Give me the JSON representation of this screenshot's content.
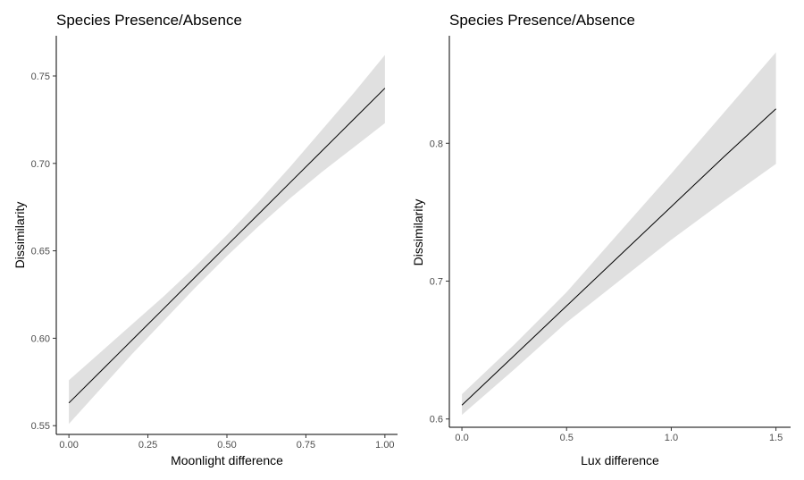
{
  "chart_data": [
    {
      "type": "line",
      "title": "Species Presence/Absence",
      "xlabel": "Moonlight difference",
      "ylabel": "Dissimilarity",
      "xlim": [
        -0.04,
        1.04
      ],
      "ylim": [
        0.545,
        0.773
      ],
      "x_ticks": [
        0.0,
        0.25,
        0.5,
        0.75,
        1.0
      ],
      "x_tick_labels": [
        "0.00",
        "0.25",
        "0.50",
        "0.75",
        "1.00"
      ],
      "y_ticks": [
        0.55,
        0.6,
        0.65,
        0.7,
        0.75
      ],
      "y_tick_labels": [
        "0.55",
        "0.60",
        "0.65",
        "0.70",
        "0.75"
      ],
      "grid": false,
      "legend": "none",
      "line_color": "#000000",
      "band_color": "#e0e0e0",
      "series": [
        {
          "x": [
            0.0,
            0.1,
            0.2,
            0.3,
            0.4,
            0.5,
            0.6,
            0.7,
            0.8,
            0.9,
            1.0
          ],
          "y": [
            0.563,
            0.581,
            0.599,
            0.617,
            0.635,
            0.653,
            0.671,
            0.689,
            0.707,
            0.725,
            0.743
          ],
          "lower": [
            0.551,
            0.571,
            0.591,
            0.61,
            0.629,
            0.647,
            0.664,
            0.68,
            0.695,
            0.709,
            0.723
          ],
          "upper": [
            0.576,
            0.592,
            0.608,
            0.624,
            0.641,
            0.659,
            0.678,
            0.698,
            0.719,
            0.74,
            0.762
          ]
        }
      ]
    },
    {
      "type": "line",
      "title": "Species Presence/Absence",
      "xlabel": "Lux difference",
      "ylabel": "Dissimilarity",
      "xlim": [
        -0.06,
        1.57
      ],
      "ylim": [
        0.594,
        0.878
      ],
      "x_ticks": [
        0.0,
        0.5,
        1.0,
        1.5
      ],
      "x_tick_labels": [
        "0.0",
        "0.5",
        "1.0",
        "1.5"
      ],
      "y_ticks": [
        0.6,
        0.7,
        0.8
      ],
      "y_tick_labels": [
        "0.6",
        "0.7",
        "0.8"
      ],
      "grid": false,
      "legend": "none",
      "line_color": "#000000",
      "band_color": "#e0e0e0",
      "series": [
        {
          "x": [
            0.0,
            0.25,
            0.5,
            0.75,
            1.0,
            1.25,
            1.5
          ],
          "y": [
            0.61,
            0.646,
            0.682,
            0.718,
            0.754,
            0.79,
            0.825
          ],
          "lower": [
            0.603,
            0.636,
            0.67,
            0.7,
            0.73,
            0.758,
            0.785
          ],
          "upper": [
            0.618,
            0.654,
            0.692,
            0.735,
            0.778,
            0.822,
            0.866
          ]
        }
      ]
    }
  ]
}
